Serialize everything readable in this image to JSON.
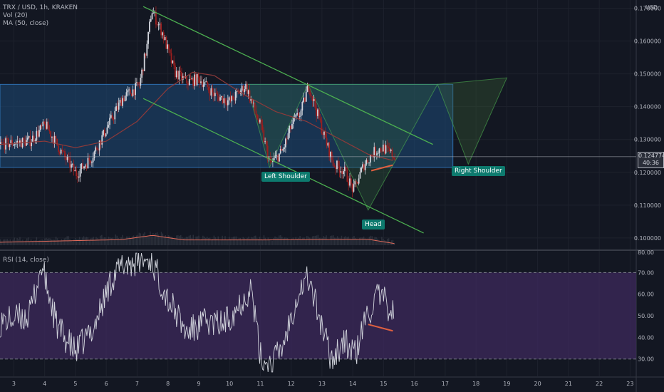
{
  "header": {
    "symbol": "TRX / USD, 1h, KRAKEN",
    "vol_label": "Vol (20)",
    "ma_label": "MA (50, close)",
    "currency": "USD"
  },
  "rsi_label": "RSI (14, close)",
  "current_price": {
    "price": "0.124774",
    "countdown": "40:36"
  },
  "annotations": {
    "left_shoulder": "Left Shoulder",
    "head": "Head",
    "right_shoulder": "Right Shoulder"
  },
  "colors": {
    "background": "#131722",
    "bull": "#d1d4dc",
    "bear": "#9c1e1e",
    "ma": "#8e3a3a",
    "channel": "#4caf50",
    "zone": "#1e4b78",
    "rsi_band": "#3e2a5c",
    "rsi_line": "#d1d4dc",
    "divergence": "#e06040",
    "label_bg": "#0d7a6e"
  },
  "chart_data": [
    {
      "type": "candlestick",
      "x_axis": {
        "ticks": [
          "3",
          "4",
          "5",
          "6",
          "7",
          "8",
          "9",
          "10",
          "11",
          "12",
          "13",
          "14",
          "15",
          "16",
          "17",
          "18",
          "19",
          "20",
          "21",
          "22",
          "23"
        ],
        "range": [
          2.55,
          23.2
        ]
      },
      "y_axis": {
        "ticks": [
          "0.100000",
          "0.110000",
          "0.120000",
          "0.130000",
          "0.140000",
          "0.150000",
          "0.160000",
          "0.170000"
        ],
        "range": [
          0.0965,
          0.1725
        ]
      },
      "key_points": [
        {
          "x": 2.55,
          "price": 0.1285
        },
        {
          "x": 3.5,
          "price": 0.1295
        },
        {
          "x": 4.0,
          "price": 0.1345
        },
        {
          "x": 4.5,
          "price": 0.1265
        },
        {
          "x": 5.0,
          "price": 0.1195
        },
        {
          "x": 5.5,
          "price": 0.1245
        },
        {
          "x": 6.0,
          "price": 0.1335
        },
        {
          "x": 6.5,
          "price": 0.1425
        },
        {
          "x": 7.05,
          "price": 0.1465
        },
        {
          "x": 7.3,
          "price": 0.1585
        },
        {
          "x": 7.45,
          "price": 0.1695
        },
        {
          "x": 7.8,
          "price": 0.1625
        },
        {
          "x": 8.2,
          "price": 0.1505
        },
        {
          "x": 8.6,
          "price": 0.1475
        },
        {
          "x": 9.0,
          "price": 0.1485
        },
        {
          "x": 9.5,
          "price": 0.1435
        },
        {
          "x": 10.0,
          "price": 0.1415
        },
        {
          "x": 10.5,
          "price": 0.1465
        },
        {
          "x": 11.0,
          "price": 0.1335
        },
        {
          "x": 11.3,
          "price": 0.1225
        },
        {
          "x": 11.7,
          "price": 0.1265
        },
        {
          "x": 12.0,
          "price": 0.1345
        },
        {
          "x": 12.3,
          "price": 0.1385
        },
        {
          "x": 12.55,
          "price": 0.1465
        },
        {
          "x": 13.0,
          "price": 0.1325
        },
        {
          "x": 13.35,
          "price": 0.1225
        },
        {
          "x": 13.7,
          "price": 0.1205
        },
        {
          "x": 14.0,
          "price": 0.1145
        },
        {
          "x": 14.35,
          "price": 0.1225
        },
        {
          "x": 14.7,
          "price": 0.1265
        },
        {
          "x": 14.95,
          "price": 0.1275
        },
        {
          "x": 15.35,
          "price": 0.1248
        }
      ],
      "ma50_points": [
        {
          "x": 2.55,
          "price": 0.1285
        },
        {
          "x": 4.0,
          "price": 0.1295
        },
        {
          "x": 5.0,
          "price": 0.1275
        },
        {
          "x": 6.0,
          "price": 0.1295
        },
        {
          "x": 7.0,
          "price": 0.1355
        },
        {
          "x": 8.0,
          "price": 0.1455
        },
        {
          "x": 8.8,
          "price": 0.1505
        },
        {
          "x": 9.5,
          "price": 0.1495
        },
        {
          "x": 10.5,
          "price": 0.1435
        },
        {
          "x": 11.5,
          "price": 0.1385
        },
        {
          "x": 12.5,
          "price": 0.1355
        },
        {
          "x": 13.5,
          "price": 0.1305
        },
        {
          "x": 14.5,
          "price": 0.1255
        },
        {
          "x": 15.35,
          "price": 0.1235
        }
      ],
      "drawings": {
        "zone": {
          "x": [
            2.55,
            17.25
          ],
          "price": [
            0.1215,
            0.1468
          ]
        },
        "channel_upper": [
          {
            "x": 7.2,
            "price": 0.1705
          },
          {
            "x": 16.6,
            "price": 0.1285
          }
        ],
        "channel_lower": [
          {
            "x": 7.2,
            "price": 0.1425
          },
          {
            "x": 16.3,
            "price": 0.1015
          }
        ],
        "pattern_left": [
          {
            "x": 10.55,
            "price": 0.1468
          },
          {
            "x": 11.3,
            "price": 0.1215
          },
          {
            "x": 12.55,
            "price": 0.1468
          }
        ],
        "pattern_head": [
          {
            "x": 12.55,
            "price": 0.1468
          },
          {
            "x": 14.5,
            "price": 0.1085
          },
          {
            "x": 16.75,
            "price": 0.1468
          }
        ],
        "pattern_right": [
          {
            "x": 16.75,
            "price": 0.1468
          },
          {
            "x": 17.75,
            "price": 0.1225
          },
          {
            "x": 19.0,
            "price": 0.1488
          }
        ],
        "divergence_price": [
          {
            "x": 14.6,
            "price": 0.1205
          },
          {
            "x": 15.3,
            "price": 0.1222
          }
        ]
      },
      "volume": {
        "baseline": 0.0978,
        "points": [
          {
            "x": 2.55,
            "v": 0.0987
          },
          {
            "x": 6.5,
            "v": 0.0995
          },
          {
            "x": 7.5,
            "v": 0.1008
          },
          {
            "x": 8.5,
            "v": 0.0994
          },
          {
            "x": 11.0,
            "v": 0.0994
          },
          {
            "x": 12.5,
            "v": 0.0995
          },
          {
            "x": 14.5,
            "v": 0.0996
          },
          {
            "x": 15.35,
            "v": 0.0983
          }
        ]
      }
    },
    {
      "type": "line",
      "name": "RSI (14, close)",
      "y_axis": {
        "ticks": [
          "30.00",
          "40.00",
          "50.00",
          "60.00",
          "70.00",
          "80.00"
        ],
        "range": [
          22,
          80
        ]
      },
      "bands": [
        30,
        70
      ],
      "key_points": [
        {
          "x": 2.55,
          "v": 47
        },
        {
          "x": 3.5,
          "v": 50
        },
        {
          "x": 3.9,
          "v": 73
        },
        {
          "x": 4.4,
          "v": 45
        },
        {
          "x": 5.0,
          "v": 33
        },
        {
          "x": 5.6,
          "v": 45
        },
        {
          "x": 6.2,
          "v": 68
        },
        {
          "x": 6.6,
          "v": 74
        },
        {
          "x": 7.45,
          "v": 76
        },
        {
          "x": 8.0,
          "v": 58
        },
        {
          "x": 8.6,
          "v": 42
        },
        {
          "x": 9.2,
          "v": 47
        },
        {
          "x": 9.8,
          "v": 46
        },
        {
          "x": 10.3,
          "v": 55
        },
        {
          "x": 10.7,
          "v": 63
        },
        {
          "x": 11.0,
          "v": 31
        },
        {
          "x": 11.3,
          "v": 27
        },
        {
          "x": 11.7,
          "v": 35
        },
        {
          "x": 12.2,
          "v": 60
        },
        {
          "x": 12.55,
          "v": 68
        },
        {
          "x": 13.0,
          "v": 45
        },
        {
          "x": 13.3,
          "v": 30
        },
        {
          "x": 13.7,
          "v": 38
        },
        {
          "x": 14.1,
          "v": 32
        },
        {
          "x": 14.4,
          "v": 48
        },
        {
          "x": 14.8,
          "v": 59
        },
        {
          "x": 15.0,
          "v": 57
        },
        {
          "x": 15.35,
          "v": 51
        }
      ],
      "divergence": [
        {
          "x": 14.5,
          "v": 46
        },
        {
          "x": 15.3,
          "v": 43
        }
      ]
    }
  ]
}
